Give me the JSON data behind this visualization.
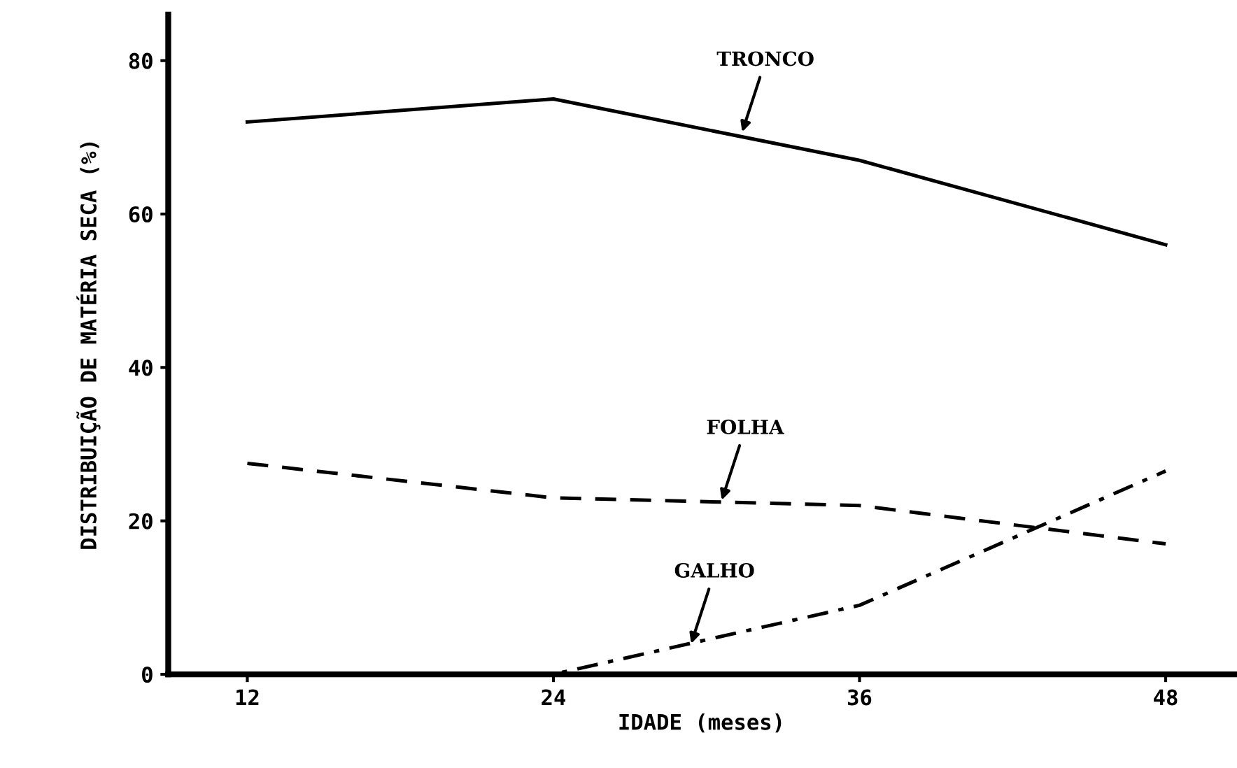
{
  "chart_data": {
    "type": "line",
    "xlabel": "IDADE (meses)",
    "ylabel": "DISTRIBUIÇÃO DE MATÉRIA SECA (%)",
    "x": [
      12,
      24,
      36,
      48
    ],
    "series": [
      {
        "color": "#000000",
        "line_style": "solid",
        "values": [
          72,
          75,
          67,
          56
        ]
      },
      {
        "color": "#000000",
        "line_style": "dashed",
        "values": [
          27.5,
          23,
          22,
          17
        ]
      },
      {
        "color": "#000000",
        "line_style": "dashdot",
        "values": [
          0,
          0,
          9,
          26.5
        ]
      }
    ],
    "annotations": [
      {
        "text": "TRONCO",
        "x": 31.4,
        "y": 70.7
      },
      {
        "text": "FOLHA",
        "x": 30.6,
        "y": 22.7
      },
      {
        "text": "GALHO",
        "x": 29.4,
        "y": 4
      }
    ],
    "xlim": [
      8.9,
      50.7
    ],
    "ylim": [
      0,
      86
    ],
    "xticks": [
      12,
      24,
      36,
      48
    ],
    "yticks": [
      0,
      20,
      40,
      60,
      80
    ],
    "grid": false,
    "legend": false,
    "marker": "none"
  }
}
